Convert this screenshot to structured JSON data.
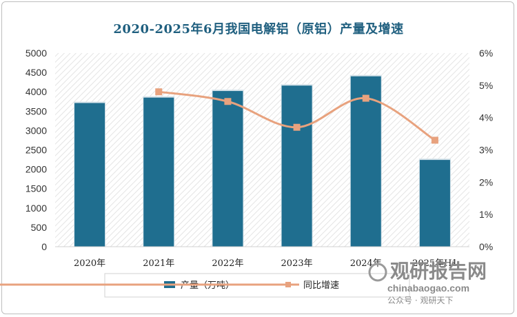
{
  "chart_data": {
    "type": "bar",
    "title": "2020-2025年6月我国电解铝（原铝）产量及增速",
    "categories": [
      "2020年",
      "2021年",
      "2022年",
      "2023年",
      "2024年",
      "2025年H1"
    ],
    "series": [
      {
        "name": "产量（万吨）",
        "type": "bar",
        "axis": "left",
        "color": "#1f6e8f",
        "values": [
          3710,
          3850,
          4020,
          4160,
          4400,
          2240
        ]
      },
      {
        "name": "同比增速",
        "type": "line",
        "axis": "right",
        "color": "#e8a27e",
        "marker": "square",
        "values": [
          null,
          4.8,
          4.5,
          3.7,
          4.6,
          3.3
        ]
      }
    ],
    "y_left": {
      "ylim": [
        0,
        5000
      ],
      "ticks": [
        "0",
        "500",
        "1000",
        "1500",
        "2000",
        "2500",
        "3000",
        "3500",
        "4000",
        "4500",
        "5000"
      ]
    },
    "y_right": {
      "ylim": [
        0,
        6
      ],
      "ticks": [
        "0%",
        "1%",
        "2%",
        "3%",
        "4%",
        "5%",
        "6%"
      ]
    },
    "legend_position": "bottom",
    "grid": false
  },
  "watermark": {
    "brand": "观研报告网",
    "url": "chinabaogao.com",
    "account": "公众号 · 观研天下"
  }
}
